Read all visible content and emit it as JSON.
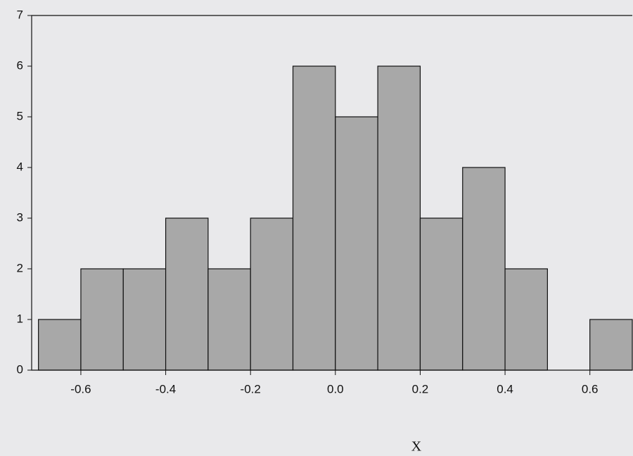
{
  "chart_data": {
    "type": "histogram",
    "xlabel": "X",
    "bins": [
      -0.7,
      -0.6,
      -0.5,
      -0.4,
      -0.3,
      -0.2,
      -0.1,
      0.0,
      0.1,
      0.2,
      0.3,
      0.4,
      0.5,
      0.6,
      0.7
    ],
    "values": [
      1,
      2,
      2,
      3,
      2,
      3,
      6,
      5,
      6,
      3,
      4,
      2,
      0,
      1
    ],
    "color": "#a8a8a8",
    "xlim": [
      -0.716,
      0.7
    ],
    "xticks": [
      -0.6,
      -0.4,
      -0.2,
      {
        "value": 0,
        "label": "0.0"
      },
      0.2,
      0.4,
      0.6
    ],
    "ylim": [
      0,
      7
    ],
    "yticks": [
      0,
      1,
      2,
      3,
      4,
      5,
      6,
      7
    ]
  }
}
